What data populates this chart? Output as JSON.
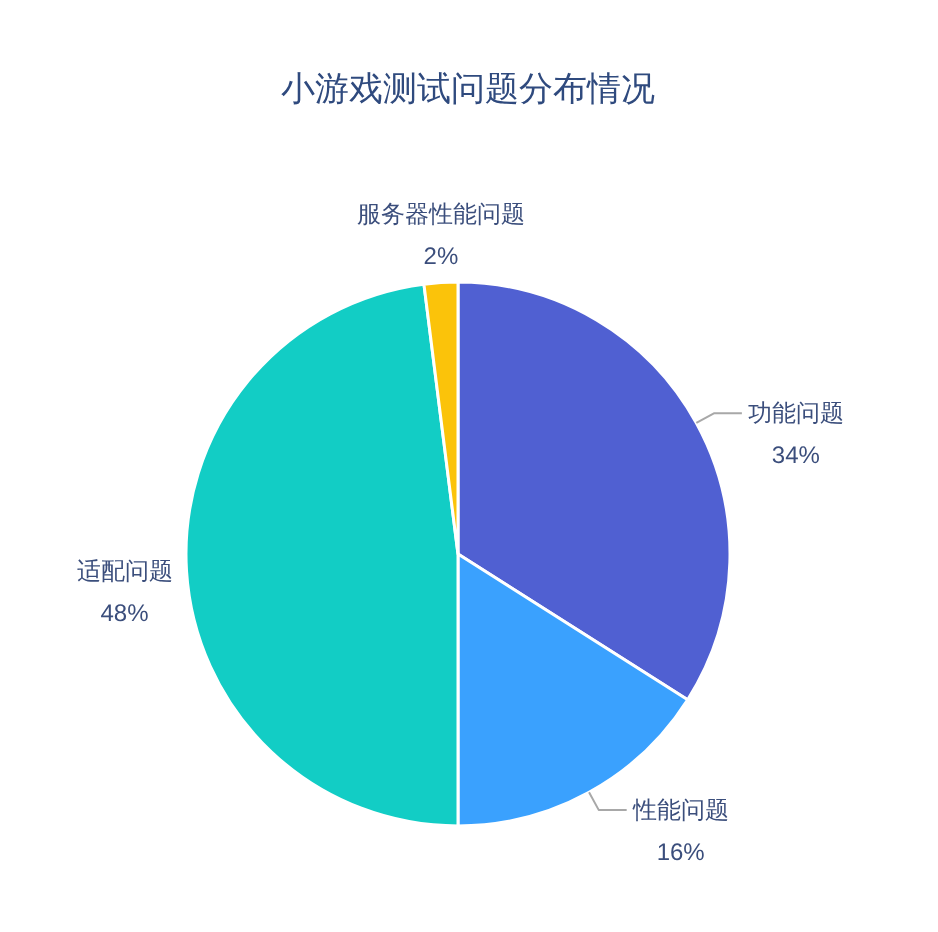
{
  "chart_data": {
    "type": "pie",
    "title": "小游戏测试问题分布情况",
    "categories": [
      "功能问题",
      "性能问题",
      "适配问题",
      "服务器性能问题"
    ],
    "values": [
      34,
      16,
      48,
      2
    ],
    "colors": [
      "#5060d2",
      "#3aa1fe",
      "#12cdc5",
      "#fbc30a"
    ],
    "value_labels": [
      "34%",
      "16%",
      "48%",
      "2%"
    ]
  }
}
